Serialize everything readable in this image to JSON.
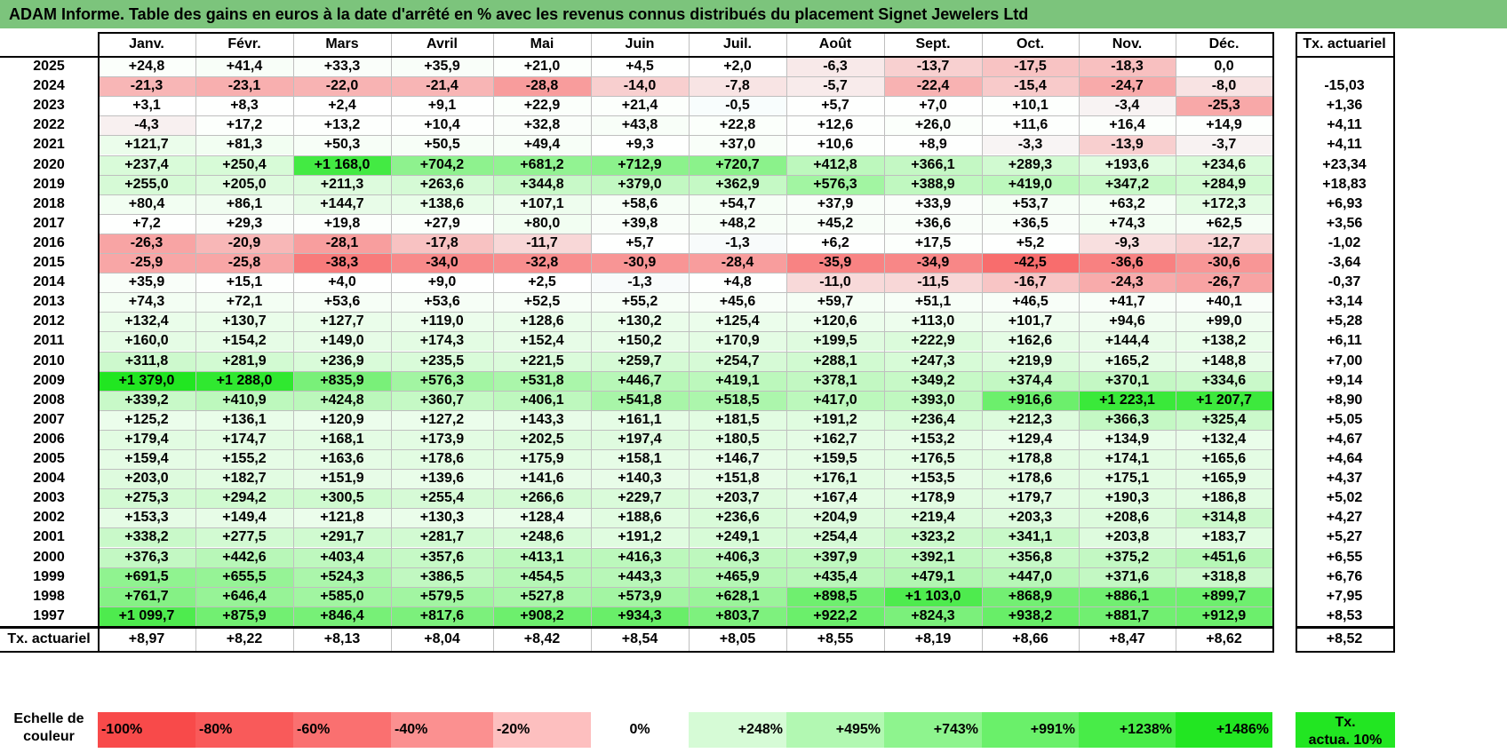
{
  "title": "ADAM Informe. Table des gains en euros à la date d'arrêté en % avec les revenus connus distribués du placement Signet Jewelers Ltd",
  "months": [
    "Janv.",
    "Févr.",
    "Mars",
    "Avril",
    "Mai",
    "Juin",
    "Juil.",
    "Août",
    "Sept.",
    "Oct.",
    "Nov.",
    "Déc."
  ],
  "rate_header": "Tx. actuariel",
  "rows": [
    {
      "year": "2025",
      "values": [
        "+24,8",
        "+41,4",
        "+33,3",
        "+35,9",
        "+21,0",
        "+4,5",
        "+2,0",
        "-6,3",
        "-13,7",
        "-17,5",
        "-18,3",
        "0,0"
      ],
      "rate": ""
    },
    {
      "year": "2024",
      "values": [
        "-21,3",
        "-23,1",
        "-22,0",
        "-21,4",
        "-28,8",
        "-14,0",
        "-7,8",
        "-5,7",
        "-22,4",
        "-15,4",
        "-24,7",
        "-8,0"
      ],
      "rate": "-15,03"
    },
    {
      "year": "2023",
      "values": [
        "+3,1",
        "+8,3",
        "+2,4",
        "+9,1",
        "+22,9",
        "+21,4",
        "-0,5",
        "+5,7",
        "+7,0",
        "+10,1",
        "-3,4",
        "-25,3"
      ],
      "rate": "+1,36"
    },
    {
      "year": "2022",
      "values": [
        "-4,3",
        "+17,2",
        "+13,2",
        "+10,4",
        "+32,8",
        "+43,8",
        "+22,8",
        "+12,6",
        "+26,0",
        "+11,6",
        "+16,4",
        "+14,9"
      ],
      "rate": "+4,11"
    },
    {
      "year": "2021",
      "values": [
        "+121,7",
        "+81,3",
        "+50,3",
        "+50,5",
        "+49,4",
        "+9,3",
        "+37,0",
        "+10,6",
        "+8,9",
        "-3,3",
        "-13,9",
        "-3,7"
      ],
      "rate": "+4,11"
    },
    {
      "year": "2020",
      "values": [
        "+237,4",
        "+250,4",
        "+1 168,0",
        "+704,2",
        "+681,2",
        "+712,9",
        "+720,7",
        "+412,8",
        "+366,1",
        "+289,3",
        "+193,6",
        "+234,6"
      ],
      "rate": "+23,34"
    },
    {
      "year": "2019",
      "values": [
        "+255,0",
        "+205,0",
        "+211,3",
        "+263,6",
        "+344,8",
        "+379,0",
        "+362,9",
        "+576,3",
        "+388,9",
        "+419,0",
        "+347,2",
        "+284,9"
      ],
      "rate": "+18,83"
    },
    {
      "year": "2018",
      "values": [
        "+80,4",
        "+86,1",
        "+144,7",
        "+138,6",
        "+107,1",
        "+58,6",
        "+54,7",
        "+37,9",
        "+33,9",
        "+53,7",
        "+63,2",
        "+172,3"
      ],
      "rate": "+6,93"
    },
    {
      "year": "2017",
      "values": [
        "+7,2",
        "+29,3",
        "+19,8",
        "+27,9",
        "+80,0",
        "+39,8",
        "+48,2",
        "+45,2",
        "+36,6",
        "+36,5",
        "+74,3",
        "+62,5"
      ],
      "rate": "+3,56"
    },
    {
      "year": "2016",
      "values": [
        "-26,3",
        "-20,9",
        "-28,1",
        "-17,8",
        "-11,7",
        "+5,7",
        "-1,3",
        "+6,2",
        "+17,5",
        "+5,2",
        "-9,3",
        "-12,7"
      ],
      "rate": "-1,02"
    },
    {
      "year": "2015",
      "values": [
        "-25,9",
        "-25,8",
        "-38,3",
        "-34,0",
        "-32,8",
        "-30,9",
        "-28,4",
        "-35,9",
        "-34,9",
        "-42,5",
        "-36,6",
        "-30,6"
      ],
      "rate": "-3,64"
    },
    {
      "year": "2014",
      "values": [
        "+35,9",
        "+15,1",
        "+4,0",
        "+9,0",
        "+2,5",
        "-1,3",
        "+4,8",
        "-11,0",
        "-11,5",
        "-16,7",
        "-24,3",
        "-26,7"
      ],
      "rate": "-0,37"
    },
    {
      "year": "2013",
      "values": [
        "+74,3",
        "+72,1",
        "+53,6",
        "+53,6",
        "+52,5",
        "+55,2",
        "+45,6",
        "+59,7",
        "+51,1",
        "+46,5",
        "+41,7",
        "+40,1"
      ],
      "rate": "+3,14"
    },
    {
      "year": "2012",
      "values": [
        "+132,4",
        "+130,7",
        "+127,7",
        "+119,0",
        "+128,6",
        "+130,2",
        "+125,4",
        "+120,6",
        "+113,0",
        "+101,7",
        "+94,6",
        "+99,0"
      ],
      "rate": "+5,28"
    },
    {
      "year": "2011",
      "values": [
        "+160,0",
        "+154,2",
        "+149,0",
        "+174,3",
        "+152,4",
        "+150,2",
        "+170,9",
        "+199,5",
        "+222,9",
        "+162,6",
        "+144,4",
        "+138,2"
      ],
      "rate": "+6,11"
    },
    {
      "year": "2010",
      "values": [
        "+311,8",
        "+281,9",
        "+236,9",
        "+235,5",
        "+221,5",
        "+259,7",
        "+254,7",
        "+288,1",
        "+247,3",
        "+219,9",
        "+165,2",
        "+148,8"
      ],
      "rate": "+7,00"
    },
    {
      "year": "2009",
      "values": [
        "+1 379,0",
        "+1 288,0",
        "+835,9",
        "+576,3",
        "+531,8",
        "+446,7",
        "+419,1",
        "+378,1",
        "+349,2",
        "+374,4",
        "+370,1",
        "+334,6"
      ],
      "rate": "+9,14"
    },
    {
      "year": "2008",
      "values": [
        "+339,2",
        "+410,9",
        "+424,8",
        "+360,7",
        "+406,1",
        "+541,8",
        "+518,5",
        "+417,0",
        "+393,0",
        "+916,6",
        "+1 223,1",
        "+1 207,7"
      ],
      "rate": "+8,90"
    },
    {
      "year": "2007",
      "values": [
        "+125,2",
        "+136,1",
        "+120,9",
        "+127,2",
        "+143,3",
        "+161,1",
        "+181,5",
        "+191,2",
        "+236,4",
        "+212,3",
        "+366,3",
        "+325,4"
      ],
      "rate": "+5,05"
    },
    {
      "year": "2006",
      "values": [
        "+179,4",
        "+174,7",
        "+168,1",
        "+173,9",
        "+202,5",
        "+197,4",
        "+180,5",
        "+162,7",
        "+153,2",
        "+129,4",
        "+134,9",
        "+132,4"
      ],
      "rate": "+4,67"
    },
    {
      "year": "2005",
      "values": [
        "+159,4",
        "+155,2",
        "+163,6",
        "+178,6",
        "+175,9",
        "+158,1",
        "+146,7",
        "+159,5",
        "+176,5",
        "+178,8",
        "+174,1",
        "+165,6"
      ],
      "rate": "+4,64"
    },
    {
      "year": "2004",
      "values": [
        "+203,0",
        "+182,7",
        "+151,9",
        "+139,6",
        "+141,6",
        "+140,3",
        "+151,8",
        "+176,1",
        "+153,5",
        "+178,6",
        "+175,1",
        "+165,9"
      ],
      "rate": "+4,37"
    },
    {
      "year": "2003",
      "values": [
        "+275,3",
        "+294,2",
        "+300,5",
        "+255,4",
        "+266,6",
        "+229,7",
        "+203,7",
        "+167,4",
        "+178,9",
        "+179,7",
        "+190,3",
        "+186,8"
      ],
      "rate": "+5,02"
    },
    {
      "year": "2002",
      "values": [
        "+153,3",
        "+149,4",
        "+121,8",
        "+130,3",
        "+128,4",
        "+188,6",
        "+236,6",
        "+204,9",
        "+219,4",
        "+203,3",
        "+208,6",
        "+314,8"
      ],
      "rate": "+4,27"
    },
    {
      "year": "2001",
      "values": [
        "+338,2",
        "+277,5",
        "+291,7",
        "+281,7",
        "+248,6",
        "+191,2",
        "+249,1",
        "+254,4",
        "+323,2",
        "+341,1",
        "+203,8",
        "+183,7"
      ],
      "rate": "+5,27"
    },
    {
      "year": "2000",
      "values": [
        "+376,3",
        "+442,6",
        "+403,4",
        "+357,6",
        "+413,1",
        "+416,3",
        "+406,3",
        "+397,9",
        "+392,1",
        "+356,8",
        "+375,2",
        "+451,6"
      ],
      "rate": "+6,55"
    },
    {
      "year": "1999",
      "values": [
        "+691,5",
        "+655,5",
        "+524,3",
        "+386,5",
        "+454,5",
        "+443,3",
        "+465,9",
        "+435,4",
        "+479,1",
        "+447,0",
        "+371,6",
        "+318,8"
      ],
      "rate": "+6,76"
    },
    {
      "year": "1998",
      "values": [
        "+761,7",
        "+646,4",
        "+585,0",
        "+579,5",
        "+527,8",
        "+573,9",
        "+628,1",
        "+898,5",
        "+1 103,0",
        "+868,9",
        "+886,1",
        "+899,7"
      ],
      "rate": "+7,95"
    },
    {
      "year": "1997",
      "values": [
        "+1 099,7",
        "+875,9",
        "+846,4",
        "+817,6",
        "+908,2",
        "+934,3",
        "+803,7",
        "+922,2",
        "+824,3",
        "+938,2",
        "+881,7",
        "+912,9"
      ],
      "rate": "+8,53"
    }
  ],
  "footer": {
    "label": "Tx. actuariel",
    "values": [
      "+8,97",
      "+8,22",
      "+8,13",
      "+8,04",
      "+8,42",
      "+8,54",
      "+8,05",
      "+8,55",
      "+8,19",
      "+8,66",
      "+8,47",
      "+8,62"
    ],
    "rate": "+8,52"
  },
  "scale": {
    "label_line1": "Echelle de",
    "label_line2": "couleur",
    "stops": [
      {
        "label": "-100%",
        "color": "#f84a4a",
        "align": "left"
      },
      {
        "label": "-80%",
        "color": "#f95a5a",
        "align": "left"
      },
      {
        "label": "-60%",
        "color": "#fa7070",
        "align": "left"
      },
      {
        "label": "-40%",
        "color": "#fb9090",
        "align": "left"
      },
      {
        "label": "-20%",
        "color": "#fdbfbf",
        "align": "left"
      },
      {
        "label": "0%",
        "color": "#ffffff",
        "align": "center"
      },
      {
        "label": "+248%",
        "color": "#d6fbd6",
        "align": "right"
      },
      {
        "label": "+495%",
        "color": "#b2f8b2",
        "align": "right"
      },
      {
        "label": "+743%",
        "color": "#8ef48e",
        "align": "right"
      },
      {
        "label": "+991%",
        "color": "#6af06a",
        "align": "right"
      },
      {
        "label": "+1238%",
        "color": "#48ec48",
        "align": "right"
      },
      {
        "label": "+1486%",
        "color": "#22e622",
        "align": "right"
      }
    ],
    "rate_line1": "Tx.",
    "rate_line2": "actua. 10%",
    "rate_color": "#22e622"
  }
}
